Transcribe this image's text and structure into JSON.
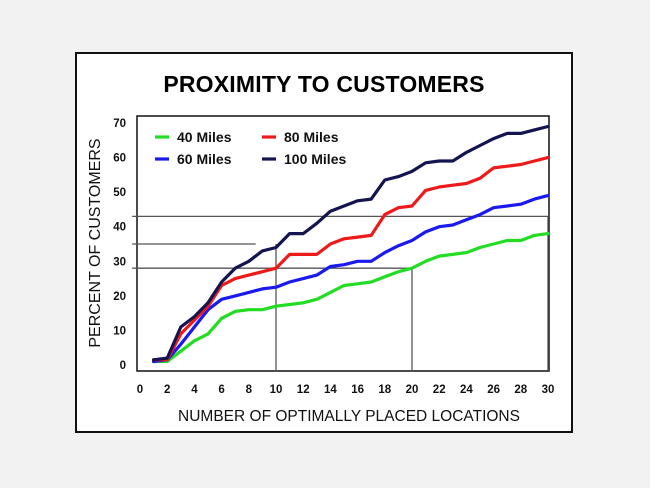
{
  "chart_data": {
    "type": "line",
    "title": "PROXIMITY TO CUSTOMERS",
    "xlabel": "NUMBER OF OPTIMALLY PLACED LOCATIONS",
    "ylabel": "PERCENT OF CUSTOMERS",
    "xlim": [
      0,
      30
    ],
    "ylim": [
      0,
      70
    ],
    "xticks": [
      0,
      2,
      4,
      6,
      8,
      10,
      12,
      14,
      16,
      18,
      20,
      22,
      24,
      26,
      28,
      30
    ],
    "yticks": [
      0,
      10,
      20,
      30,
      40,
      50,
      60,
      70
    ],
    "grid": false,
    "legend_position": "upper-left (inside plot)",
    "x": [
      1,
      2,
      3,
      4,
      5,
      6,
      7,
      8,
      9,
      10,
      11,
      12,
      13,
      14,
      15,
      16,
      17,
      18,
      19,
      20,
      21,
      22,
      23,
      24,
      25,
      26,
      27,
      28,
      29,
      30
    ],
    "series": [
      {
        "name": "40 Miles",
        "color": "#22dd22",
        "values": [
          1,
          1,
          4,
          7,
          9,
          13.5,
          15.5,
          16,
          16,
          17,
          17.5,
          18,
          19,
          21,
          23,
          23.5,
          24,
          25.5,
          27,
          28,
          30,
          31.5,
          32,
          32.5,
          34,
          35,
          36,
          36,
          37.5,
          38
        ]
      },
      {
        "name": "60 Miles",
        "color": "#1a1aee",
        "values": [
          1,
          1.5,
          6,
          11,
          16,
          19,
          20,
          21,
          22,
          22.5,
          24,
          25,
          26,
          28.5,
          29,
          30,
          30,
          32.5,
          34.5,
          36,
          38.5,
          40,
          40.5,
          42,
          43.5,
          45.5,
          46,
          46.5,
          48,
          49
        ]
      },
      {
        "name": "80 Miles",
        "color": "#ee1a1a",
        "values": [
          1.5,
          1.5,
          9,
          13,
          17,
          23,
          25,
          26,
          27,
          28,
          32,
          32,
          32,
          35,
          36.5,
          37,
          37.5,
          43.5,
          45.5,
          46,
          50.5,
          51.5,
          52,
          52.5,
          54,
          57,
          57.5,
          58,
          59,
          60
        ]
      },
      {
        "name": "100 Miles",
        "color": "#141450",
        "values": [
          1.5,
          2,
          11,
          14,
          18,
          24,
          28,
          30,
          33,
          34,
          38,
          38,
          41,
          44.5,
          46,
          47.5,
          48,
          53.5,
          54.5,
          56,
          58.5,
          59,
          59,
          61.5,
          63.5,
          65.5,
          67,
          67,
          68,
          69
        ]
      }
    ],
    "annotations": {
      "reference_lines": [
        {
          "orientation": "horizontal",
          "y": 43,
          "x_from": -0.5,
          "x_to": 30
        },
        {
          "orientation": "horizontal",
          "y": 35,
          "x_from": -0.5,
          "x_to": 8.5
        },
        {
          "orientation": "horizontal",
          "y": 28,
          "x_from": -0.5,
          "x_to": 20
        },
        {
          "orientation": "vertical",
          "x": 10,
          "y_from": 0,
          "y_to": 35
        },
        {
          "orientation": "vertical",
          "x": 20,
          "y_from": 0,
          "y_to": 28
        },
        {
          "orientation": "vertical",
          "x": 30,
          "y_from": 0,
          "y_to": 43
        }
      ],
      "reference_color": "#555555"
    }
  },
  "legend": {
    "items": [
      {
        "label": "40 Miles",
        "color": "#22dd22"
      },
      {
        "label": "80 Miles",
        "color": "#ee1a1a"
      },
      {
        "label": "60 Miles",
        "color": "#1a1aee"
      },
      {
        "label": "100 Miles",
        "color": "#141450"
      }
    ]
  }
}
